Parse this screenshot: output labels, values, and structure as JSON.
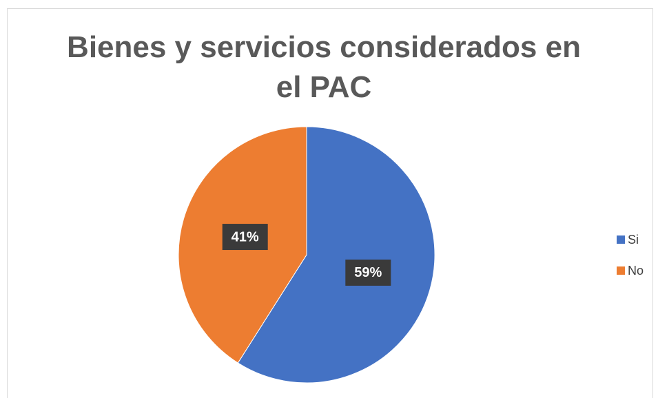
{
  "chart_data": {
    "type": "pie",
    "title": "Bienes y servicios considerados en el PAC",
    "categories": [
      "Si",
      "No"
    ],
    "values": [
      59,
      41
    ],
    "value_labels": [
      "59%",
      "41%"
    ],
    "colors": [
      "#4472c4",
      "#ed7d31"
    ],
    "legend": "right"
  }
}
